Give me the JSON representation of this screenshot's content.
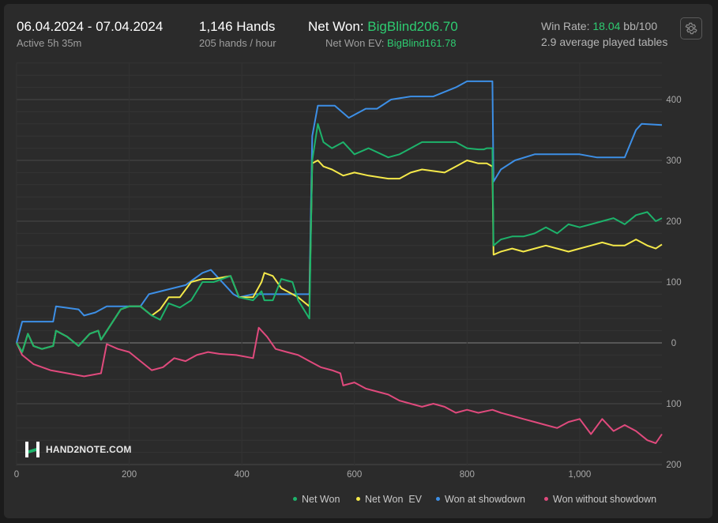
{
  "header": {
    "date_range": "06.04.2024 - 07.04.2024",
    "active": "Active 5h 35m",
    "hands": "1,146 Hands",
    "hands_per_hour": "205 hands / hour",
    "net_won_label": "Net Won: ",
    "net_won_value": "BigBlind206.70",
    "net_won_ev_label": "Net Won  EV: ",
    "net_won_ev_value": "BigBlind161.78",
    "win_rate_label": "Win Rate: ",
    "win_rate_value": "18.04",
    "win_rate_unit": " bb/100",
    "avg_tables": "2.9 average played tables"
  },
  "logo": {
    "text": "HAND2NOTE.COM"
  },
  "colors": {
    "net_won": "#1db36b",
    "net_won_ev": "#f5e94a",
    "showdown": "#3d8fe6",
    "non_showdown": "#e04a7d",
    "accent": "#2ecc71"
  },
  "icons": {
    "settings": "gear-icon"
  },
  "chart_data": {
    "type": "line",
    "xlim": [
      0,
      1146
    ],
    "ylim": [
      -200,
      450
    ],
    "x_ticks": [
      0,
      200,
      400,
      600,
      800,
      1000
    ],
    "x_tick_labels": [
      "0",
      "200",
      "400",
      "600",
      "800",
      "1,000"
    ],
    "y_ticks": [
      400,
      300,
      200,
      100,
      0,
      -100,
      -200
    ],
    "y_tick_labels": [
      "400",
      "300",
      "200",
      "100",
      "0",
      "100",
      "200"
    ],
    "grid": true,
    "legend_position": "bottom-right",
    "series": [
      {
        "name": "Net Won",
        "color_key": "net_won",
        "points": [
          [
            0,
            0
          ],
          [
            10,
            -15
          ],
          [
            20,
            15
          ],
          [
            30,
            -5
          ],
          [
            45,
            -10
          ],
          [
            65,
            -5
          ],
          [
            70,
            20
          ],
          [
            90,
            10
          ],
          [
            110,
            -5
          ],
          [
            130,
            15
          ],
          [
            145,
            20
          ],
          [
            150,
            5
          ],
          [
            185,
            55
          ],
          [
            200,
            60
          ],
          [
            220,
            60
          ],
          [
            240,
            45
          ],
          [
            255,
            38
          ],
          [
            270,
            65
          ],
          [
            290,
            58
          ],
          [
            310,
            70
          ],
          [
            330,
            100
          ],
          [
            350,
            100
          ],
          [
            380,
            110
          ],
          [
            395,
            75
          ],
          [
            420,
            70
          ],
          [
            435,
            85
          ],
          [
            440,
            70
          ],
          [
            455,
            70
          ],
          [
            470,
            105
          ],
          [
            490,
            100
          ],
          [
            500,
            70
          ],
          [
            520,
            40
          ],
          [
            525,
            300
          ],
          [
            535,
            360
          ],
          [
            545,
            330
          ],
          [
            560,
            320
          ],
          [
            580,
            330
          ],
          [
            600,
            310
          ],
          [
            625,
            320
          ],
          [
            660,
            305
          ],
          [
            680,
            310
          ],
          [
            700,
            320
          ],
          [
            720,
            330
          ],
          [
            760,
            330
          ],
          [
            780,
            330
          ],
          [
            800,
            320
          ],
          [
            820,
            318
          ],
          [
            830,
            318
          ],
          [
            835,
            320
          ],
          [
            845,
            320
          ],
          [
            847,
            160
          ],
          [
            860,
            170
          ],
          [
            880,
            175
          ],
          [
            900,
            175
          ],
          [
            920,
            180
          ],
          [
            940,
            190
          ],
          [
            960,
            180
          ],
          [
            980,
            195
          ],
          [
            1000,
            190
          ],
          [
            1020,
            195
          ],
          [
            1040,
            200
          ],
          [
            1060,
            205
          ],
          [
            1080,
            195
          ],
          [
            1100,
            210
          ],
          [
            1120,
            215
          ],
          [
            1135,
            200
          ],
          [
            1146,
            205
          ]
        ]
      },
      {
        "name": "Net Won  EV",
        "color_key": "net_won_ev",
        "points": [
          [
            0,
            0
          ],
          [
            10,
            -15
          ],
          [
            20,
            15
          ],
          [
            30,
            -5
          ],
          [
            45,
            -10
          ],
          [
            65,
            -5
          ],
          [
            70,
            20
          ],
          [
            90,
            10
          ],
          [
            110,
            -5
          ],
          [
            130,
            15
          ],
          [
            145,
            20
          ],
          [
            150,
            5
          ],
          [
            185,
            55
          ],
          [
            200,
            60
          ],
          [
            220,
            60
          ],
          [
            240,
            45
          ],
          [
            255,
            55
          ],
          [
            270,
            75
          ],
          [
            290,
            75
          ],
          [
            310,
            100
          ],
          [
            330,
            105
          ],
          [
            350,
            105
          ],
          [
            380,
            110
          ],
          [
            395,
            75
          ],
          [
            420,
            75
          ],
          [
            435,
            100
          ],
          [
            440,
            115
          ],
          [
            455,
            110
          ],
          [
            470,
            90
          ],
          [
            490,
            80
          ],
          [
            500,
            75
          ],
          [
            520,
            60
          ],
          [
            525,
            295
          ],
          [
            535,
            300
          ],
          [
            545,
            290
          ],
          [
            560,
            285
          ],
          [
            580,
            275
          ],
          [
            600,
            280
          ],
          [
            625,
            275
          ],
          [
            660,
            270
          ],
          [
            680,
            270
          ],
          [
            700,
            280
          ],
          [
            720,
            285
          ],
          [
            760,
            280
          ],
          [
            780,
            290
          ],
          [
            800,
            300
          ],
          [
            820,
            295
          ],
          [
            830,
            295
          ],
          [
            835,
            295
          ],
          [
            845,
            290
          ],
          [
            847,
            145
          ],
          [
            860,
            150
          ],
          [
            880,
            155
          ],
          [
            900,
            150
          ],
          [
            920,
            155
          ],
          [
            940,
            160
          ],
          [
            960,
            155
          ],
          [
            980,
            150
          ],
          [
            1000,
            155
          ],
          [
            1020,
            160
          ],
          [
            1040,
            165
          ],
          [
            1060,
            160
          ],
          [
            1080,
            160
          ],
          [
            1100,
            170
          ],
          [
            1120,
            160
          ],
          [
            1135,
            155
          ],
          [
            1146,
            161.78
          ]
        ]
      },
      {
        "name": "Won at showdown",
        "color_key": "showdown",
        "points": [
          [
            0,
            0
          ],
          [
            10,
            35
          ],
          [
            65,
            35
          ],
          [
            70,
            60
          ],
          [
            110,
            55
          ],
          [
            120,
            45
          ],
          [
            140,
            50
          ],
          [
            150,
            55
          ],
          [
            160,
            60
          ],
          [
            220,
            60
          ],
          [
            235,
            80
          ],
          [
            300,
            95
          ],
          [
            330,
            115
          ],
          [
            345,
            120
          ],
          [
            385,
            80
          ],
          [
            395,
            75
          ],
          [
            420,
            80
          ],
          [
            455,
            80
          ],
          [
            470,
            80
          ],
          [
            490,
            80
          ],
          [
            500,
            80
          ],
          [
            520,
            80
          ],
          [
            525,
            340
          ],
          [
            535,
            390
          ],
          [
            565,
            390
          ],
          [
            590,
            370
          ],
          [
            620,
            385
          ],
          [
            640,
            385
          ],
          [
            665,
            400
          ],
          [
            700,
            405
          ],
          [
            740,
            405
          ],
          [
            780,
            420
          ],
          [
            800,
            430
          ],
          [
            845,
            430
          ],
          [
            847,
            265
          ],
          [
            860,
            285
          ],
          [
            885,
            300
          ],
          [
            920,
            310
          ],
          [
            960,
            310
          ],
          [
            1000,
            310
          ],
          [
            1030,
            305
          ],
          [
            1060,
            305
          ],
          [
            1080,
            305
          ],
          [
            1100,
            350
          ],
          [
            1110,
            360
          ],
          [
            1146,
            358
          ]
        ]
      },
      {
        "name": "Won without showdown",
        "color_key": "non_showdown",
        "points": [
          [
            0,
            0
          ],
          [
            10,
            -20
          ],
          [
            30,
            -35
          ],
          [
            60,
            -45
          ],
          [
            90,
            -50
          ],
          [
            120,
            -55
          ],
          [
            150,
            -50
          ],
          [
            160,
            -2
          ],
          [
            180,
            -10
          ],
          [
            200,
            -15
          ],
          [
            220,
            -30
          ],
          [
            240,
            -45
          ],
          [
            260,
            -40
          ],
          [
            280,
            -25
          ],
          [
            300,
            -30
          ],
          [
            320,
            -20
          ],
          [
            340,
            -15
          ],
          [
            360,
            -18
          ],
          [
            390,
            -20
          ],
          [
            420,
            -25
          ],
          [
            430,
            25
          ],
          [
            445,
            10
          ],
          [
            460,
            -10
          ],
          [
            480,
            -15
          ],
          [
            500,
            -20
          ],
          [
            520,
            -30
          ],
          [
            540,
            -40
          ],
          [
            560,
            -45
          ],
          [
            575,
            -50
          ],
          [
            580,
            -70
          ],
          [
            600,
            -65
          ],
          [
            620,
            -75
          ],
          [
            640,
            -80
          ],
          [
            660,
            -85
          ],
          [
            680,
            -95
          ],
          [
            700,
            -100
          ],
          [
            720,
            -105
          ],
          [
            740,
            -100
          ],
          [
            760,
            -105
          ],
          [
            780,
            -115
          ],
          [
            800,
            -110
          ],
          [
            820,
            -115
          ],
          [
            845,
            -110
          ],
          [
            860,
            -115
          ],
          [
            880,
            -120
          ],
          [
            900,
            -125
          ],
          [
            920,
            -130
          ],
          [
            940,
            -135
          ],
          [
            960,
            -140
          ],
          [
            980,
            -130
          ],
          [
            1000,
            -125
          ],
          [
            1020,
            -150
          ],
          [
            1040,
            -125
          ],
          [
            1060,
            -145
          ],
          [
            1080,
            -135
          ],
          [
            1100,
            -145
          ],
          [
            1120,
            -160
          ],
          [
            1135,
            -165
          ],
          [
            1146,
            -150
          ]
        ]
      }
    ]
  }
}
